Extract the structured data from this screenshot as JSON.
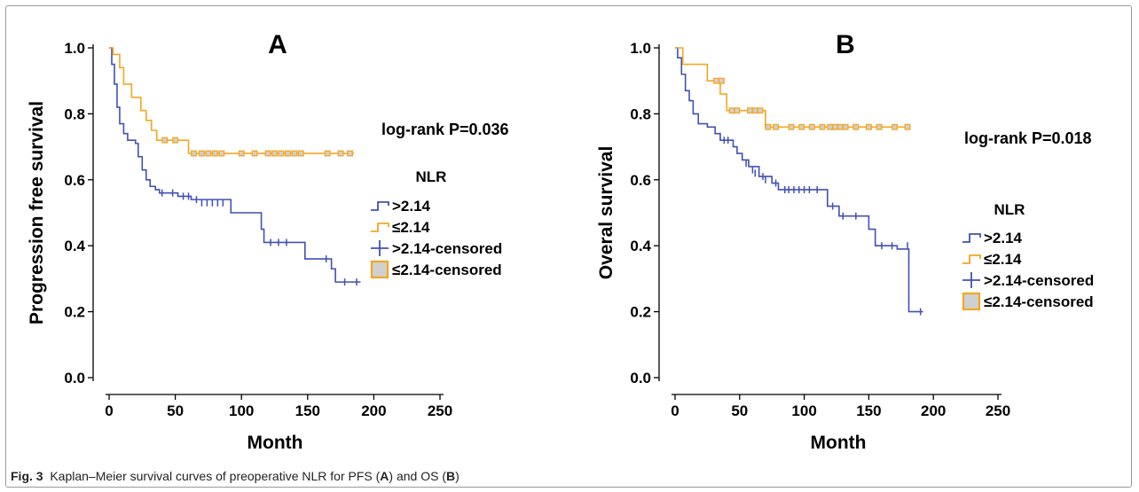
{
  "caption": {
    "label": "Fig. 3",
    "text_before": "Kaplan–Meier survival curves of preoperative NLR for PFS (",
    "letter_a": "A",
    "text_middle": ") and OS (",
    "letter_b": "B",
    "text_after": ")"
  },
  "colors": {
    "high": "#3f51b5",
    "low": "#f5a623",
    "censor_fill": "#d0d0d0"
  },
  "chart_data": [
    {
      "type": "line",
      "panel": "A",
      "title": "A",
      "xlabel": "Month",
      "ylabel": "Progression free survival",
      "xlim": [
        0,
        250
      ],
      "ylim": [
        0,
        1
      ],
      "xticks": [
        "0",
        "50",
        "100",
        "150",
        "200",
        "250"
      ],
      "yticks": [
        "0.0",
        "0.2",
        "0.4",
        "0.6",
        "0.8",
        "1.0"
      ],
      "annotation": "log-rank P=0.036",
      "legend_title": "NLR",
      "legend": [
        ">2.14",
        "≤2.14",
        ">2.14-censored",
        "≤2.14-censored"
      ],
      "series": [
        {
          "name": ">2.14",
          "key": "high",
          "steps": [
            [
              0,
              1.0
            ],
            [
              2,
              0.95
            ],
            [
              4,
              0.89
            ],
            [
              6,
              0.82
            ],
            [
              8,
              0.77
            ],
            [
              11,
              0.74
            ],
            [
              14,
              0.72
            ],
            [
              20,
              0.71
            ],
            [
              22,
              0.67
            ],
            [
              25,
              0.63
            ],
            [
              28,
              0.6
            ],
            [
              31,
              0.58
            ],
            [
              35,
              0.57
            ],
            [
              38,
              0.56
            ],
            [
              52,
              0.55
            ],
            [
              62,
              0.54
            ],
            [
              92,
              0.5
            ],
            [
              115,
              0.45
            ],
            [
              117,
              0.41
            ],
            [
              148,
              0.36
            ],
            [
              168,
              0.33
            ],
            [
              171,
              0.29
            ]
          ],
          "end": 190,
          "censored": [
            [
              40,
              0.56
            ],
            [
              48,
              0.56
            ],
            [
              56,
              0.55
            ],
            [
              60,
              0.55
            ],
            [
              66,
              0.54
            ],
            [
              70,
              0.53
            ],
            [
              74,
              0.53
            ],
            [
              78,
              0.53
            ],
            [
              82,
              0.53
            ],
            [
              86,
              0.53
            ],
            [
              122,
              0.41
            ],
            [
              128,
              0.41
            ],
            [
              134,
              0.41
            ],
            [
              164,
              0.36
            ],
            [
              178,
              0.29
            ],
            [
              187,
              0.29
            ]
          ]
        },
        {
          "name": "≤2.14",
          "key": "low",
          "steps": [
            [
              0,
              1.0
            ],
            [
              3,
              0.98
            ],
            [
              8,
              0.94
            ],
            [
              11,
              0.89
            ],
            [
              17,
              0.85
            ],
            [
              24,
              0.81
            ],
            [
              28,
              0.78
            ],
            [
              32,
              0.75
            ],
            [
              36,
              0.72
            ],
            [
              60,
              0.68
            ]
          ],
          "end": 185,
          "censored": [
            [
              42,
              0.72
            ],
            [
              50,
              0.72
            ],
            [
              64,
              0.68
            ],
            [
              70,
              0.68
            ],
            [
              75,
              0.68
            ],
            [
              80,
              0.68
            ],
            [
              85,
              0.68
            ],
            [
              100,
              0.68
            ],
            [
              110,
              0.68
            ],
            [
              120,
              0.68
            ],
            [
              125,
              0.68
            ],
            [
              130,
              0.68
            ],
            [
              135,
              0.68
            ],
            [
              140,
              0.68
            ],
            [
              145,
              0.68
            ],
            [
              165,
              0.68
            ],
            [
              175,
              0.68
            ],
            [
              182,
              0.68
            ]
          ]
        }
      ]
    },
    {
      "type": "line",
      "panel": "B",
      "title": "B",
      "xlabel": "Month",
      "ylabel": "Overal survival",
      "xlim": [
        0,
        250
      ],
      "ylim": [
        0,
        1
      ],
      "xticks": [
        "0",
        "50",
        "100",
        "150",
        "200",
        "250"
      ],
      "yticks": [
        "0.0",
        "0.2",
        "0.4",
        "0.6",
        "0.8",
        "1.0"
      ],
      "annotation": "log-rank P=0.018",
      "legend_title": "NLR",
      "legend": [
        ">2.14",
        "≤2.14",
        ">2.14-censored",
        "≤2.14-censored"
      ],
      "series": [
        {
          "name": ">2.14",
          "key": "high",
          "steps": [
            [
              0,
              1.0
            ],
            [
              2,
              0.97
            ],
            [
              5,
              0.92
            ],
            [
              8,
              0.87
            ],
            [
              11,
              0.84
            ],
            [
              14,
              0.8
            ],
            [
              18,
              0.77
            ],
            [
              25,
              0.76
            ],
            [
              31,
              0.74
            ],
            [
              35,
              0.72
            ],
            [
              45,
              0.7
            ],
            [
              48,
              0.68
            ],
            [
              52,
              0.66
            ],
            [
              57,
              0.64
            ],
            [
              65,
              0.61
            ],
            [
              75,
              0.59
            ],
            [
              80,
              0.57
            ],
            [
              118,
              0.52
            ],
            [
              127,
              0.49
            ],
            [
              150,
              0.45
            ],
            [
              155,
              0.4
            ],
            [
              172,
              0.39
            ],
            [
              181,
              0.2
            ]
          ],
          "end": 192,
          "censored": [
            [
              38,
              0.72
            ],
            [
              41,
              0.72
            ],
            [
              55,
              0.65
            ],
            [
              60,
              0.63
            ],
            [
              62,
              0.62
            ],
            [
              68,
              0.61
            ],
            [
              70,
              0.6
            ],
            [
              78,
              0.59
            ],
            [
              85,
              0.57
            ],
            [
              88,
              0.57
            ],
            [
              92,
              0.57
            ],
            [
              96,
              0.57
            ],
            [
              100,
              0.57
            ],
            [
              104,
              0.57
            ],
            [
              110,
              0.57
            ],
            [
              122,
              0.52
            ],
            [
              130,
              0.49
            ],
            [
              140,
              0.49
            ],
            [
              160,
              0.4
            ],
            [
              168,
              0.4
            ],
            [
              180,
              0.4
            ],
            [
              190,
              0.2
            ]
          ]
        },
        {
          "name": "≤2.14",
          "key": "low",
          "steps": [
            [
              0,
              1.0
            ],
            [
              6,
              0.95
            ],
            [
              25,
              0.9
            ],
            [
              35,
              0.86
            ],
            [
              40,
              0.81
            ],
            [
              53,
              0.81
            ],
            [
              70,
              0.76
            ]
          ],
          "end": 182,
          "censored": [
            [
              32,
              0.9
            ],
            [
              36,
              0.9
            ],
            [
              44,
              0.81
            ],
            [
              48,
              0.81
            ],
            [
              58,
              0.81
            ],
            [
              62,
              0.81
            ],
            [
              66,
              0.81
            ],
            [
              72,
              0.76
            ],
            [
              78,
              0.76
            ],
            [
              90,
              0.76
            ],
            [
              98,
              0.76
            ],
            [
              106,
              0.76
            ],
            [
              114,
              0.76
            ],
            [
              120,
              0.76
            ],
            [
              124,
              0.76
            ],
            [
              128,
              0.76
            ],
            [
              132,
              0.76
            ],
            [
              140,
              0.76
            ],
            [
              150,
              0.76
            ],
            [
              158,
              0.76
            ],
            [
              170,
              0.76
            ],
            [
              180,
              0.76
            ]
          ]
        }
      ]
    }
  ]
}
